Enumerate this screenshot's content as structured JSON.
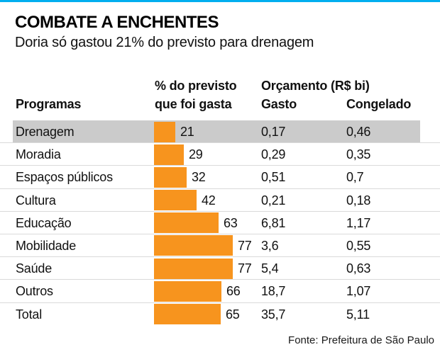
{
  "accent": {
    "topbar_color": "#00AEEF",
    "bar_color": "#F7941E",
    "highlight_color": "#CBCBCB",
    "separator_color": "#DADADA",
    "text_color": "#111111"
  },
  "header": {
    "title": "COMBATE A ENCHENTES",
    "subtitle": "Doria só gastou 21% do previsto para drenagem"
  },
  "table": {
    "col_programas": "Programas",
    "col_pct_line1": "% do previsto",
    "col_pct_line2": "que foi gasta",
    "col_orcamento": "Orçamento (R$ bi)",
    "col_gasto": "Gasto",
    "col_congelado": "Congelado"
  },
  "chart_data": {
    "type": "bar",
    "title": "COMBATE A ENCHENTES",
    "subtitle": "Doria só gastou 21% do previsto para drenagem",
    "orientation": "horizontal",
    "categories": [
      "Drenagem",
      "Moradia",
      "Espaços públicos",
      "Cultura",
      "Educação",
      "Mobilidade",
      "Saúde",
      "Outros",
      "Total"
    ],
    "series": [
      {
        "name": "% do previsto que foi gasta",
        "values": [
          21,
          29,
          32,
          42,
          63,
          77,
          77,
          66,
          65
        ]
      },
      {
        "name": "Orçamento Gasto (R$ bi)",
        "values_text": [
          "0,17",
          "0,29",
          "0,51",
          "0,21",
          "6,81",
          "3,6",
          "5,4",
          "18,7",
          "35,7"
        ]
      },
      {
        "name": "Orçamento Congelado (R$ bi)",
        "values_text": [
          "0,46",
          "0,35",
          "0,7",
          "0,18",
          "1,17",
          "0,55",
          "0,63",
          "1,07",
          "5,11"
        ]
      }
    ],
    "highlighted_category": "Drenagem",
    "bar_color": "#F7941E",
    "xlim": [
      0,
      100
    ],
    "grid": false,
    "legend": false
  },
  "footer": {
    "source": "Fonte: Prefeitura de São Paulo"
  }
}
